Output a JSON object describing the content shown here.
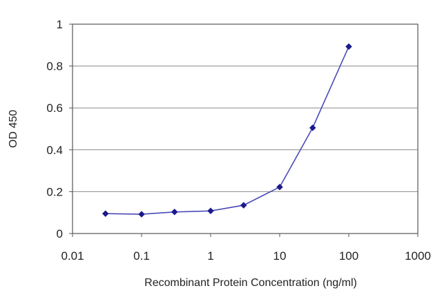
{
  "chart_data": {
    "type": "line",
    "xlabel": "Recombinant Protein Concentration (ng/ml)",
    "ylabel": "OD 450",
    "xscale": "log",
    "xlim": [
      0.01,
      1000
    ],
    "ylim": [
      0,
      1
    ],
    "x_ticks": [
      "0.01",
      "0.1",
      "1",
      "10",
      "100",
      "1000"
    ],
    "y_ticks": [
      "0",
      "0.2",
      "0.4",
      "0.6",
      "0.8",
      "1"
    ],
    "grid": "horizontal",
    "legend": "none",
    "series": [
      {
        "x": [
          0.03,
          0.1,
          0.3,
          1,
          3,
          10,
          30,
          100
        ],
        "y": [
          0.095,
          0.092,
          0.103,
          0.108,
          0.135,
          0.222,
          0.505,
          0.893
        ],
        "color": "#4a4ab8",
        "marker_color": "#1a1a8c"
      }
    ]
  }
}
